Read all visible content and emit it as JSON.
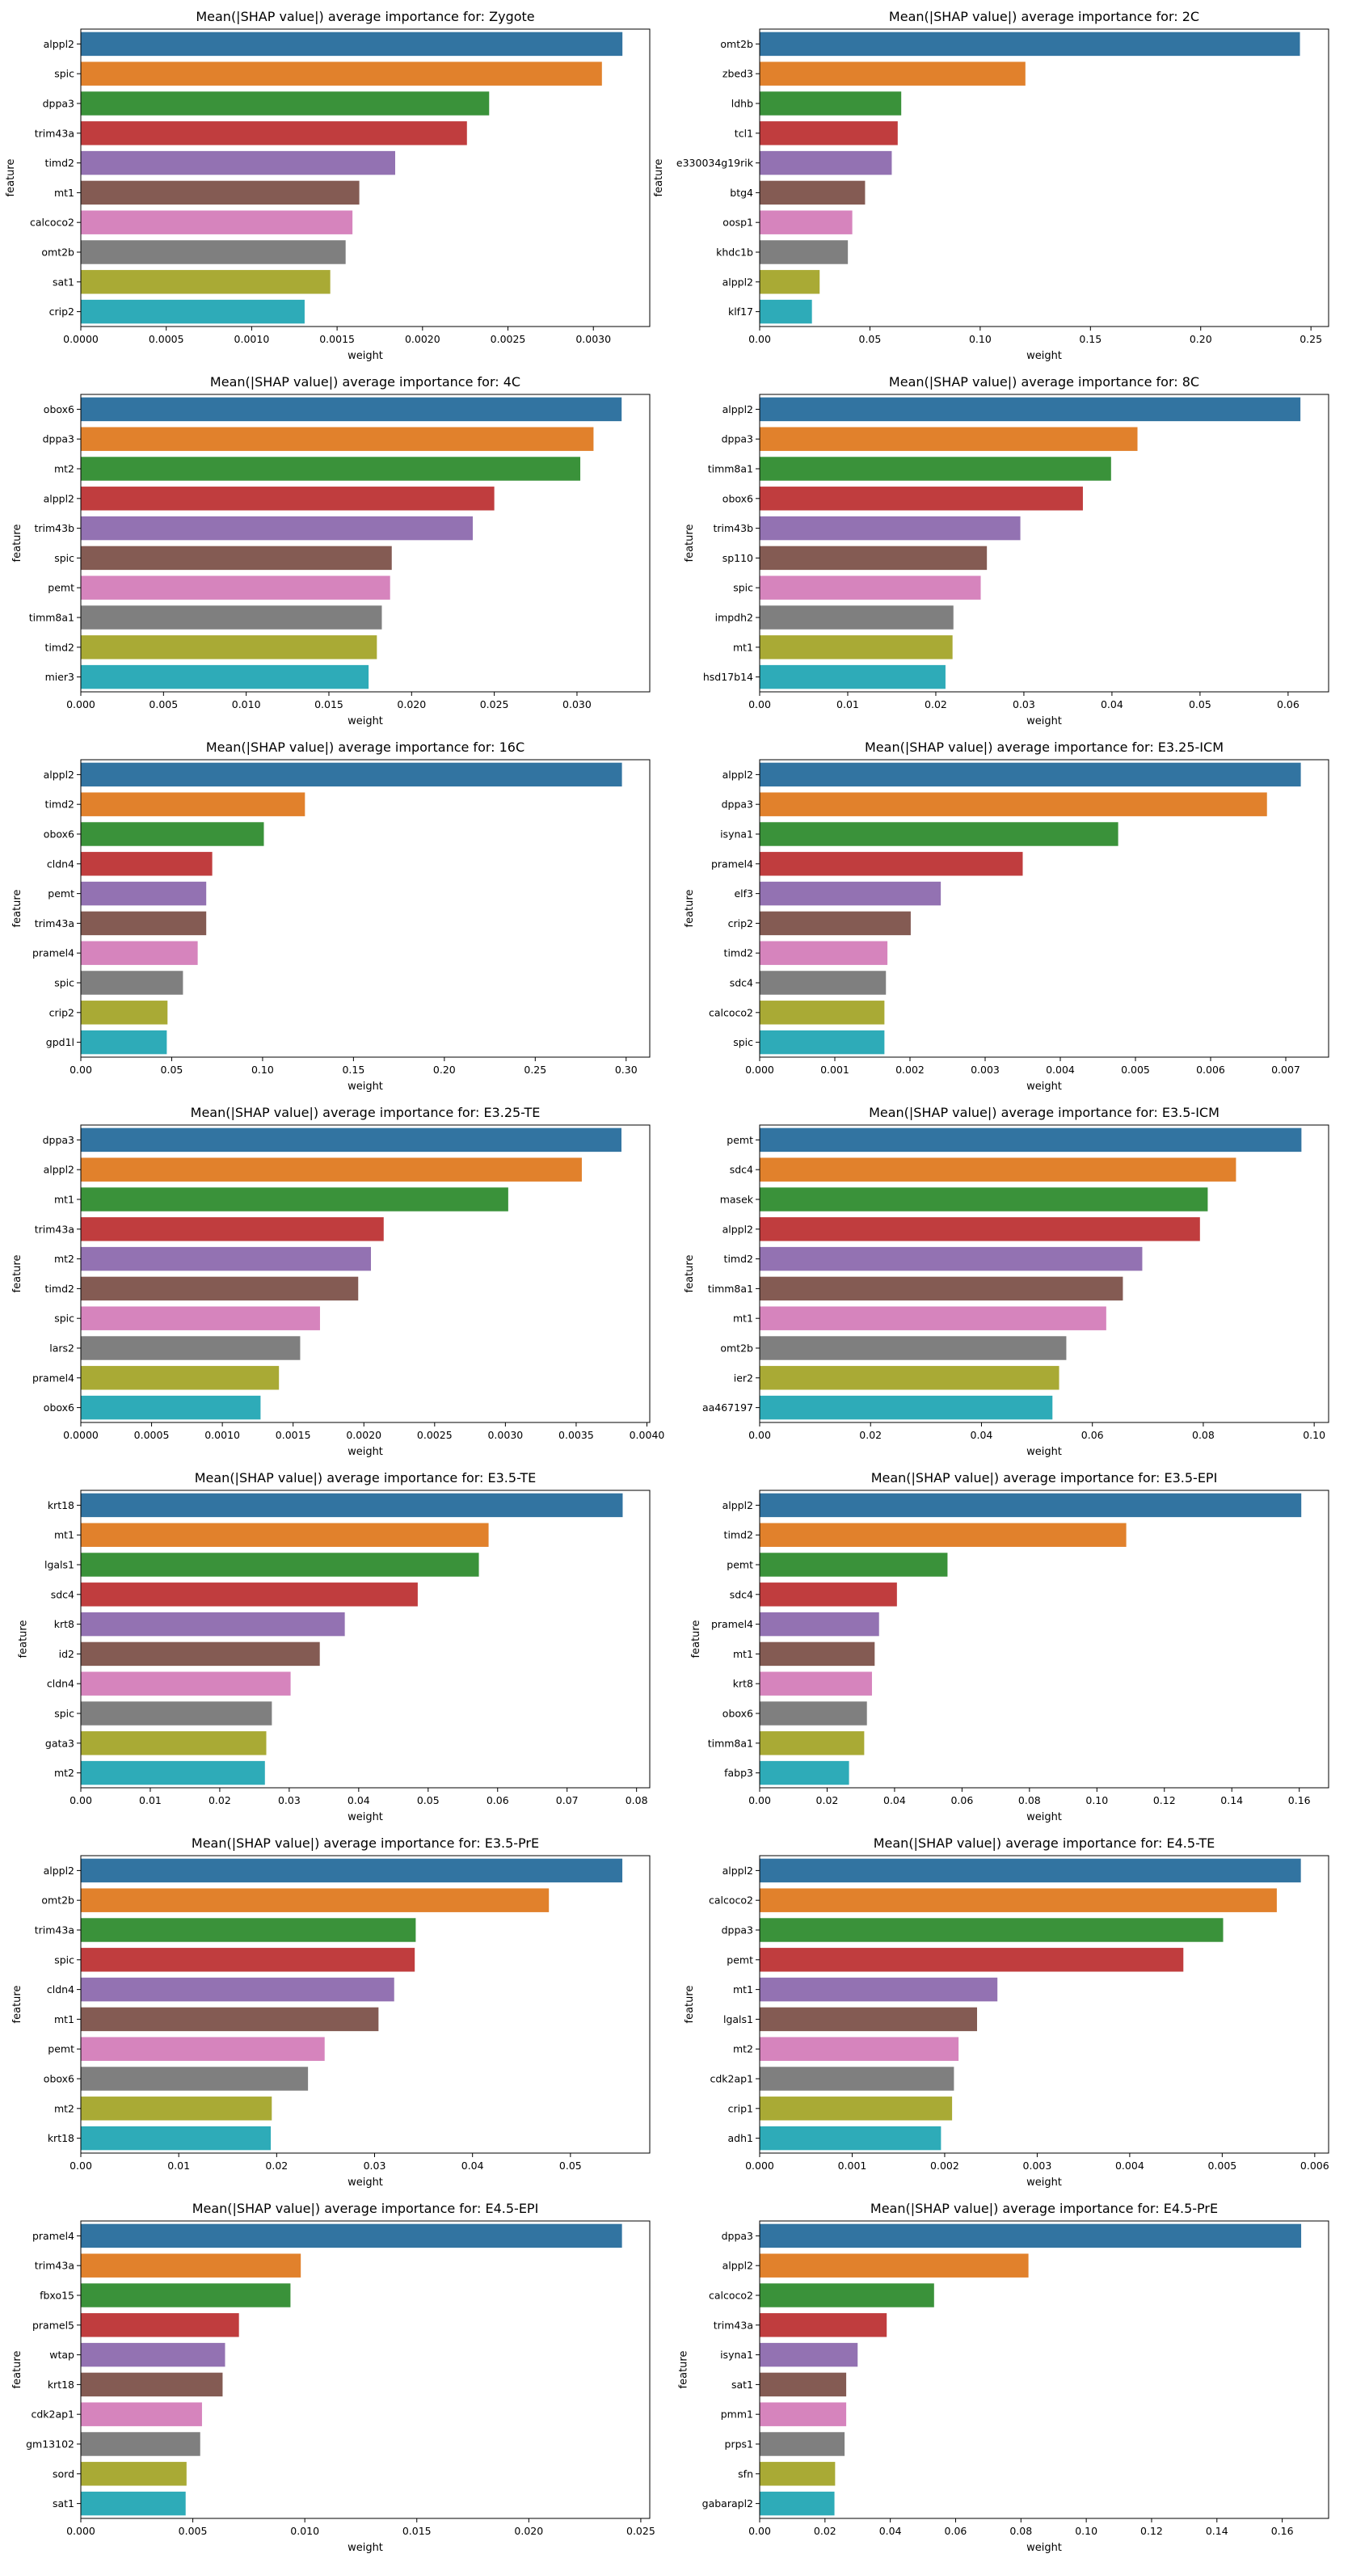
{
  "chart_data": [
    {
      "type": "bar",
      "orientation": "horizontal",
      "title": "Mean(|SHAP value|) average importance for: Zygote",
      "xlabel": "weight",
      "ylabel": "feature",
      "xlim": [
        0,
        0.00333
      ],
      "categories": [
        "alppl2",
        "spic",
        "dppa3",
        "trim43a",
        "timd2",
        "mt1",
        "calcoco2",
        "omt2b",
        "sat1",
        "crip2"
      ],
      "values": [
        0.00317,
        0.00305,
        0.00239,
        0.00226,
        0.00184,
        0.00163,
        0.00159,
        0.00155,
        0.00146,
        0.00131
      ],
      "ticks": [
        "0.0000",
        "0.0005",
        "0.0010",
        "0.0015",
        "0.0020",
        "0.0025",
        "0.0030"
      ]
    },
    {
      "type": "bar",
      "orientation": "horizontal",
      "title": "Mean(|SHAP value|) average importance for: 2C",
      "xlabel": "weight",
      "ylabel": "feature",
      "xlim": [
        0,
        0.258
      ],
      "categories": [
        "omt2b",
        "zbed3",
        "ldhb",
        "tcl1",
        "e330034g19rik",
        "btg4",
        "oosp1",
        "khdc1b",
        "alppl2",
        "klf17"
      ],
      "values": [
        0.245,
        0.1205,
        0.0642,
        0.0626,
        0.0599,
        0.0478,
        0.042,
        0.04,
        0.0272,
        0.0237
      ],
      "ticks": [
        "0.00",
        "0.05",
        "0.10",
        "0.15",
        "0.20",
        "0.25"
      ]
    },
    {
      "type": "bar",
      "orientation": "horizontal",
      "title": "Mean(|SHAP value|) average importance for: 4C",
      "xlabel": "weight",
      "ylabel": "feature",
      "xlim": [
        0,
        0.0344
      ],
      "categories": [
        "obox6",
        "dppa3",
        "mt2",
        "alppl2",
        "trim43b",
        "spic",
        "pemt",
        "timm8a1",
        "timd2",
        "mier3"
      ],
      "values": [
        0.0327,
        0.031,
        0.0302,
        0.025,
        0.0237,
        0.0188,
        0.0187,
        0.0182,
        0.0179,
        0.0174
      ],
      "ticks": [
        "0.000",
        "0.005",
        "0.010",
        "0.015",
        "0.020",
        "0.025",
        "0.030"
      ]
    },
    {
      "type": "bar",
      "orientation": "horizontal",
      "title": "Mean(|SHAP value|) average importance for: 8C",
      "xlabel": "weight",
      "ylabel": "feature",
      "xlim": [
        0,
        0.0646
      ],
      "categories": [
        "alppl2",
        "dppa3",
        "timm8a1",
        "obox6",
        "trim43b",
        "sp110",
        "spic",
        "impdh2",
        "mt1",
        "hsd17b14"
      ],
      "values": [
        0.0614,
        0.0429,
        0.0399,
        0.0367,
        0.0296,
        0.0258,
        0.0251,
        0.022,
        0.0219,
        0.0211
      ],
      "ticks": [
        "0.00",
        "0.01",
        "0.02",
        "0.03",
        "0.04",
        "0.05",
        "0.06"
      ]
    },
    {
      "type": "bar",
      "orientation": "horizontal",
      "title": "Mean(|SHAP value|) average importance for: 16C",
      "xlabel": "weight",
      "ylabel": "feature",
      "xlim": [
        0,
        0.313
      ],
      "categories": [
        "alppl2",
        "timd2",
        "obox6",
        "cldn4",
        "pemt",
        "trim43a",
        "pramel4",
        "spic",
        "crip2",
        "gpd1l"
      ],
      "values": [
        0.2977,
        0.1233,
        0.1007,
        0.0723,
        0.069,
        0.069,
        0.0643,
        0.0562,
        0.0477,
        0.0473
      ],
      "ticks": [
        "0.00",
        "0.05",
        "0.10",
        "0.15",
        "0.20",
        "0.25",
        "0.30"
      ]
    },
    {
      "type": "bar",
      "orientation": "horizontal",
      "title": "Mean(|SHAP value|) average importance for: E3.25-ICM",
      "xlabel": "weight",
      "ylabel": "feature",
      "xlim": [
        0,
        0.00757
      ],
      "categories": [
        "alppl2",
        "dppa3",
        "isyna1",
        "pramel4",
        "elf3",
        "crip2",
        "timd2",
        "sdc4",
        "calcoco2",
        "spic"
      ],
      "values": [
        0.0072,
        0.00675,
        0.00477,
        0.0035,
        0.00241,
        0.00201,
        0.0017,
        0.00168,
        0.00166,
        0.00166
      ],
      "ticks": [
        "0.000",
        "0.001",
        "0.002",
        "0.003",
        "0.004",
        "0.005",
        "0.006",
        "0.007"
      ]
    },
    {
      "type": "bar",
      "orientation": "horizontal",
      "title": "Mean(|SHAP value|) average importance for: E3.25-TE",
      "xlabel": "weight",
      "ylabel": "feature",
      "xlim": [
        0,
        0.00402
      ],
      "categories": [
        "dppa3",
        "alppl2",
        "mt1",
        "trim43a",
        "mt2",
        "timd2",
        "spic",
        "lars2",
        "pramel4",
        "obox6"
      ],
      "values": [
        0.00382,
        0.00354,
        0.00302,
        0.00214,
        0.00205,
        0.00196,
        0.00169,
        0.00155,
        0.0014,
        0.00127
      ],
      "ticks": [
        "0.0000",
        "0.0005",
        "0.0010",
        "0.0015",
        "0.0020",
        "0.0025",
        "0.0030",
        "0.0035",
        "0.0040"
      ]
    },
    {
      "type": "bar",
      "orientation": "horizontal",
      "title": "Mean(|SHAP value|) average importance for: E3.5-ICM",
      "xlabel": "weight",
      "ylabel": "feature",
      "xlim": [
        0,
        0.1026
      ],
      "categories": [
        "pemt",
        "sdc4",
        "masek",
        "alppl2",
        "timd2",
        "timm8a1",
        "mt1",
        "omt2b",
        "ier2",
        "aa467197"
      ],
      "values": [
        0.0977,
        0.0859,
        0.0808,
        0.0794,
        0.069,
        0.0655,
        0.0625,
        0.0553,
        0.054,
        0.0528
      ],
      "ticks": [
        "0.00",
        "0.02",
        "0.04",
        "0.06",
        "0.08",
        "0.10"
      ]
    },
    {
      "type": "bar",
      "orientation": "horizontal",
      "title": "Mean(|SHAP value|) average importance for: E3.5-TE",
      "xlabel": "weight",
      "ylabel": "feature",
      "xlim": [
        0,
        0.0819
      ],
      "categories": [
        "krt18",
        "mt1",
        "lgals1",
        "sdc4",
        "krt8",
        "id2",
        "cldn4",
        "spic",
        "gata3",
        "mt2"
      ],
      "values": [
        0.078,
        0.0587,
        0.0573,
        0.0485,
        0.038,
        0.0344,
        0.0302,
        0.0275,
        0.0267,
        0.0265
      ],
      "ticks": [
        "0.00",
        "0.01",
        "0.02",
        "0.03",
        "0.04",
        "0.05",
        "0.06",
        "0.07",
        "0.08"
      ]
    },
    {
      "type": "bar",
      "orientation": "horizontal",
      "title": "Mean(|SHAP value|) average importance for: E3.5-EPI",
      "xlabel": "weight",
      "ylabel": "feature",
      "xlim": [
        0,
        0.1687
      ],
      "categories": [
        "alppl2",
        "timd2",
        "pemt",
        "sdc4",
        "pramel4",
        "mt1",
        "krt8",
        "obox6",
        "timm8a1",
        "fabp3"
      ],
      "values": [
        0.1606,
        0.1087,
        0.0557,
        0.0407,
        0.0354,
        0.0341,
        0.0333,
        0.0318,
        0.031,
        0.0265
      ],
      "ticks": [
        "0.00",
        "0.02",
        "0.04",
        "0.06",
        "0.08",
        "0.10",
        "0.12",
        "0.14",
        "0.16"
      ]
    },
    {
      "type": "bar",
      "orientation": "horizontal",
      "title": "Mean(|SHAP value|) average importance for: E3.5-PrE",
      "xlabel": "weight",
      "ylabel": "feature",
      "xlim": [
        0,
        0.0581
      ],
      "categories": [
        "alppl2",
        "omt2b",
        "trim43a",
        "spic",
        "cldn4",
        "mt1",
        "pemt",
        "obox6",
        "mt2",
        "krt18"
      ],
      "values": [
        0.0553,
        0.0478,
        0.0342,
        0.0341,
        0.032,
        0.0304,
        0.0249,
        0.0232,
        0.0195,
        0.0194
      ],
      "ticks": [
        "0.00",
        "0.01",
        "0.02",
        "0.03",
        "0.04",
        "0.05"
      ]
    },
    {
      "type": "bar",
      "orientation": "horizontal",
      "title": "Mean(|SHAP value|) average importance for: E4.5-TE",
      "xlabel": "weight",
      "ylabel": "feature",
      "xlim": [
        0,
        0.00615
      ],
      "categories": [
        "alppl2",
        "calcoco2",
        "dppa3",
        "pemt",
        "mt1",
        "lgals1",
        "mt2",
        "cdk2ap1",
        "crip1",
        "adh1"
      ],
      "values": [
        0.00585,
        0.00559,
        0.00501,
        0.00458,
        0.00257,
        0.00235,
        0.00215,
        0.0021,
        0.00208,
        0.00196
      ],
      "ticks": [
        "0.000",
        "0.001",
        "0.002",
        "0.003",
        "0.004",
        "0.005",
        "0.006"
      ]
    },
    {
      "type": "bar",
      "orientation": "horizontal",
      "title": "Mean(|SHAP value|) average importance for: E4.5-EPI",
      "xlabel": "weight",
      "ylabel": "feature",
      "xlim": [
        0,
        0.0254
      ],
      "categories": [
        "pramel4",
        "trim43a",
        "fbxo15",
        "pramel5",
        "wtap",
        "krt18",
        "cdk2ap1",
        "gm13102",
        "sord",
        "sat1"
      ],
      "values": [
        0.02416,
        0.00982,
        0.00936,
        0.00706,
        0.00644,
        0.00633,
        0.00541,
        0.00533,
        0.00472,
        0.00468
      ],
      "ticks": [
        "0.000",
        "0.005",
        "0.010",
        "0.015",
        "0.020",
        "0.025"
      ]
    },
    {
      "type": "bar",
      "orientation": "horizontal",
      "title": "Mean(|SHAP value|) average importance for: E4.5-PrE",
      "xlabel": "weight",
      "ylabel": "feature",
      "xlim": [
        0,
        0.1742
      ],
      "categories": [
        "dppa3",
        "alppl2",
        "calcoco2",
        "trim43a",
        "isyna1",
        "sat1",
        "pmm1",
        "prps1",
        "sfn",
        "gabarapl2"
      ],
      "values": [
        0.1658,
        0.0823,
        0.0534,
        0.0389,
        0.03,
        0.0265,
        0.0265,
        0.026,
        0.0231,
        0.0229
      ],
      "ticks": [
        "0.00",
        "0.02",
        "0.04",
        "0.06",
        "0.08",
        "0.10",
        "0.12",
        "0.14",
        "0.16"
      ]
    }
  ],
  "palette": [
    "#3274a1",
    "#e1812c",
    "#3a923a",
    "#c03d3e",
    "#9372b2",
    "#845b53",
    "#d684bd",
    "#7f7f7f",
    "#a9aa35",
    "#2eabb8"
  ],
  "grid": false,
  "legend": "none"
}
